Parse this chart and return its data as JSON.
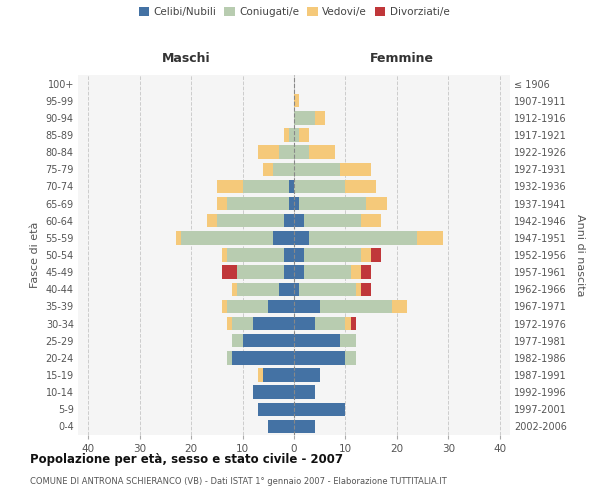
{
  "age_groups": [
    "0-4",
    "5-9",
    "10-14",
    "15-19",
    "20-24",
    "25-29",
    "30-34",
    "35-39",
    "40-44",
    "45-49",
    "50-54",
    "55-59",
    "60-64",
    "65-69",
    "70-74",
    "75-79",
    "80-84",
    "85-89",
    "90-94",
    "95-99",
    "100+"
  ],
  "birth_years": [
    "2002-2006",
    "1997-2001",
    "1992-1996",
    "1987-1991",
    "1982-1986",
    "1977-1981",
    "1972-1976",
    "1967-1971",
    "1962-1966",
    "1957-1961",
    "1952-1956",
    "1947-1951",
    "1942-1946",
    "1937-1941",
    "1932-1936",
    "1927-1931",
    "1922-1926",
    "1917-1921",
    "1912-1916",
    "1907-1911",
    "≤ 1906"
  ],
  "male": {
    "celibi": [
      5,
      7,
      8,
      6,
      12,
      10,
      8,
      5,
      3,
      2,
      2,
      4,
      2,
      1,
      1,
      0,
      0,
      0,
      0,
      0,
      0
    ],
    "coniugati": [
      0,
      0,
      0,
      0,
      1,
      2,
      4,
      8,
      8,
      9,
      11,
      18,
      13,
      12,
      9,
      4,
      3,
      1,
      0,
      0,
      0
    ],
    "vedovi": [
      0,
      0,
      0,
      1,
      0,
      0,
      1,
      1,
      1,
      0,
      1,
      1,
      2,
      2,
      5,
      2,
      4,
      1,
      0,
      0,
      0
    ],
    "divorziati": [
      0,
      0,
      0,
      0,
      0,
      0,
      0,
      0,
      0,
      3,
      0,
      0,
      0,
      0,
      0,
      0,
      0,
      0,
      0,
      0,
      0
    ]
  },
  "female": {
    "nubili": [
      4,
      10,
      4,
      5,
      10,
      9,
      4,
      5,
      1,
      2,
      2,
      3,
      2,
      1,
      0,
      0,
      0,
      0,
      0,
      0,
      0
    ],
    "coniugate": [
      0,
      0,
      0,
      0,
      2,
      3,
      6,
      14,
      11,
      9,
      11,
      21,
      11,
      13,
      10,
      9,
      3,
      1,
      4,
      0,
      0
    ],
    "vedove": [
      0,
      0,
      0,
      0,
      0,
      0,
      1,
      3,
      1,
      2,
      2,
      5,
      4,
      4,
      6,
      6,
      5,
      2,
      2,
      1,
      0
    ],
    "divorziate": [
      0,
      0,
      0,
      0,
      0,
      0,
      1,
      0,
      2,
      2,
      2,
      0,
      0,
      0,
      0,
      0,
      0,
      0,
      0,
      0,
      0
    ]
  },
  "colors": {
    "celibi": "#4472A4",
    "coniugati": "#B8CCB0",
    "vedovi": "#F5C97A",
    "divorziati": "#C0373A"
  },
  "xlim": 42,
  "title": "Popolazione per età, sesso e stato civile - 2007",
  "subtitle": "COMUNE DI ANTRONA SCHIERANCO (VB) - Dati ISTAT 1° gennaio 2007 - Elaborazione TUTTITALIA.IT",
  "ylabel_left": "Fasce di età",
  "ylabel_right": "Anni di nascita",
  "xlabel_left": "Maschi",
  "xlabel_right": "Femmine",
  "bg_color": "#f5f5f5"
}
